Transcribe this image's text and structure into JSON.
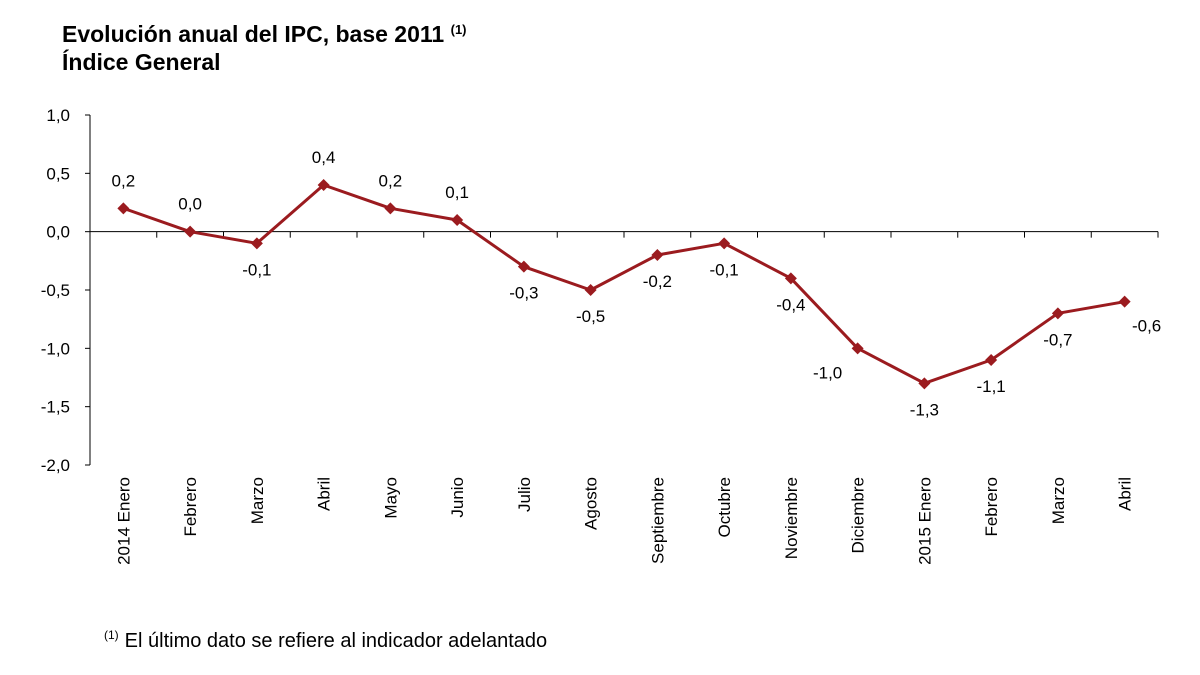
{
  "title": {
    "line1": "Evolución anual del IPC, base 2011",
    "note_ref": "(1)",
    "line2": "Índice General"
  },
  "footnote": {
    "ref": "(1)",
    "text": "El último dato se refiere al indicador adelantado"
  },
  "colors": {
    "series": "#9b1b1f",
    "axis": "#000000",
    "text": "#000000"
  },
  "chart_data": {
    "type": "line",
    "title": "Evolución anual del IPC, base 2011 (1) Índice General",
    "xlabel": "",
    "ylabel": "",
    "ylim": [
      -2.0,
      1.0
    ],
    "yticks": [
      1.0,
      0.5,
      0.0,
      -0.5,
      -1.0,
      -1.5,
      -2.0
    ],
    "ytick_labels": [
      "1,0",
      "0,5",
      "0,0",
      "-0,5",
      "-1,0",
      "-1,5",
      "-2,0"
    ],
    "grid": false,
    "legend": "none",
    "categories": [
      "2014 Enero",
      "Febrero",
      "Marzo",
      "Abril",
      "Mayo",
      "Junio",
      "Julio",
      "Agosto",
      "Septiembre",
      "Octubre",
      "Noviembre",
      "Diciembre",
      "2015 Enero",
      "Febrero",
      "Marzo",
      "Abril"
    ],
    "series": [
      {
        "name": "IPC Índice General",
        "values": [
          0.2,
          0.0,
          -0.1,
          0.4,
          0.2,
          0.1,
          -0.3,
          -0.5,
          -0.2,
          -0.1,
          -0.4,
          -1.0,
          -1.3,
          -1.1,
          -0.7,
          -0.6
        ],
        "labels": [
          "0,2",
          "0,0",
          "-0,1",
          "0,4",
          "0,2",
          "0,1",
          "-0,3",
          "-0,5",
          "-0,2",
          "-0,1",
          "-0,4",
          "-1,0",
          "-1,3",
          "-1,1",
          "-0,7",
          "-0,6"
        ],
        "label_positions": [
          "above",
          "above",
          "below",
          "above",
          "above",
          "above",
          "below",
          "below",
          "below",
          "below",
          "below",
          "below-left",
          "below",
          "below",
          "below",
          "below-right"
        ]
      }
    ]
  }
}
